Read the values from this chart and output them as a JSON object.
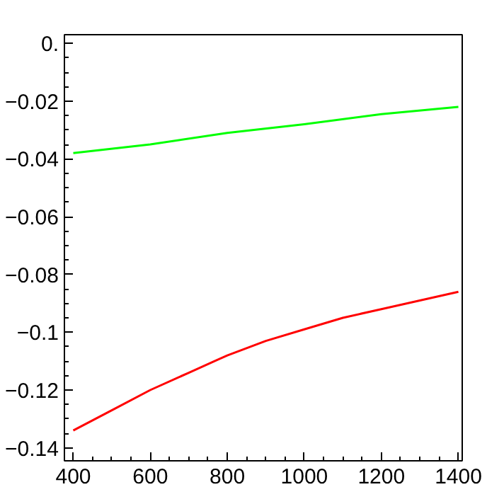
{
  "chart_data": {
    "type": "line",
    "xlim": [
      377,
      1410
    ],
    "ylim": [
      -0.1445,
      0.003
    ],
    "xticks": [
      400,
      600,
      800,
      1000,
      1200,
      1400
    ],
    "yticks": [
      {
        "value": 0,
        "label": "0."
      },
      -0.02,
      -0.04,
      -0.06,
      -0.08,
      -0.1,
      -0.12,
      -0.14
    ],
    "grid": false,
    "series": [
      {
        "color": "#00ff00",
        "x": [
          400,
          600,
          800,
          1000,
          1200,
          1400
        ],
        "values": [
          -0.038,
          -0.035,
          -0.031,
          -0.028,
          -0.0245,
          -0.022
        ]
      },
      {
        "color": "#ff0000",
        "x": [
          400,
          500,
          600,
          700,
          800,
          900,
          1000,
          1100,
          1200,
          1300,
          1400
        ],
        "values": [
          -0.134,
          -0.127,
          -0.12,
          -0.114,
          -0.108,
          -0.103,
          -0.099,
          -0.095,
          -0.092,
          -0.089,
          -0.086
        ]
      }
    ]
  }
}
